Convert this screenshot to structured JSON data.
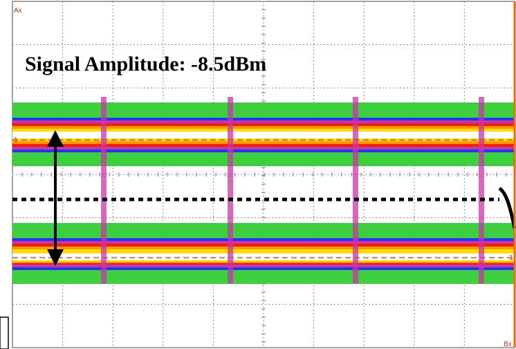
{
  "screen": {
    "annotation": "Signal Amplitude:  -8.5dBm",
    "marker_ax": "Ax",
    "marker_bx": "Bx",
    "marker_level_1": "1",
    "marker_level_2": "1"
  },
  "colors": {
    "background": "#ffffff",
    "grid": "#888888",
    "trace_outer": "#33cc33",
    "trace_blue": "#2233ff",
    "trace_magenta": "#cc33aa",
    "trace_red": "#ee2200",
    "trace_orange": "#ff9900",
    "trace_yellow": "#ffdd00",
    "trace_core": "#ffffff",
    "marker": "#cc3300",
    "threshold": "#000000",
    "right_edge": "#ff6600"
  }
}
